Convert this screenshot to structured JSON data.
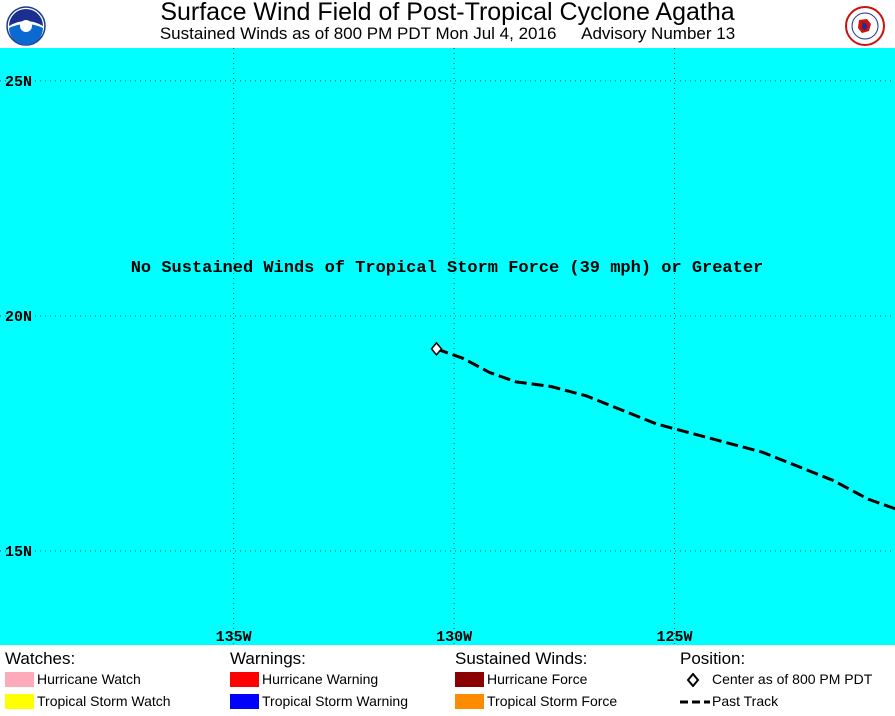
{
  "header": {
    "title": "Surface Wind Field of Post-Tropical Cyclone Agatha",
    "subtitle_left": "Sustained Winds as of 800 PM PDT Mon Jul 4, 2016",
    "subtitle_right": "Advisory Number 13",
    "logo_left": "NOAA",
    "logo_right": "NATIONAL WEATHER SERVICE"
  },
  "map": {
    "ocean_color": "#00ffff",
    "message": "No Sustained Winds of Tropical Storm Force (39 mph) or Greater",
    "lat_labels": [
      "25N",
      "20N",
      "15N"
    ],
    "lon_labels": [
      "135W",
      "130W",
      "125W"
    ],
    "lat_range": [
      13.0,
      25.7
    ],
    "lon_range": [
      -140.3,
      -120.0
    ],
    "lat_ticks": [
      25,
      20,
      15
    ],
    "lon_ticks": [
      -135,
      -130,
      -125
    ],
    "center": {
      "lat": 19.3,
      "lon": -130.4
    },
    "past_track": [
      [
        -130.4,
        19.3
      ],
      [
        -129.8,
        19.1
      ],
      [
        -129.2,
        18.8
      ],
      [
        -128.6,
        18.6
      ],
      [
        -127.8,
        18.5
      ],
      [
        -127.0,
        18.3
      ],
      [
        -126.2,
        18.0
      ],
      [
        -125.4,
        17.7
      ],
      [
        -124.6,
        17.5
      ],
      [
        -123.8,
        17.3
      ],
      [
        -123.0,
        17.1
      ],
      [
        -122.2,
        16.8
      ],
      [
        -121.4,
        16.5
      ],
      [
        -120.6,
        16.1
      ],
      [
        -120.0,
        15.9
      ]
    ]
  },
  "legend": {
    "watches": {
      "title": "Watches:",
      "items": [
        {
          "label": "Hurricane Watch",
          "color": "#ffaabb"
        },
        {
          "label": "Tropical Storm Watch",
          "color": "#ffff00"
        }
      ]
    },
    "warnings": {
      "title": "Warnings:",
      "items": [
        {
          "label": "Hurricane Warning",
          "color": "#ff0000"
        },
        {
          "label": "Tropical Storm Warning",
          "color": "#0000ff"
        }
      ]
    },
    "winds": {
      "title": "Sustained Winds:",
      "items": [
        {
          "label": "Hurricane Force",
          "color": "#8b0000"
        },
        {
          "label": "Tropical Storm Force",
          "color": "#ff8c00"
        }
      ]
    },
    "position": {
      "title": "Position:",
      "center_label": "Center as of 800 PM PDT",
      "track_label": "Past Track"
    }
  }
}
